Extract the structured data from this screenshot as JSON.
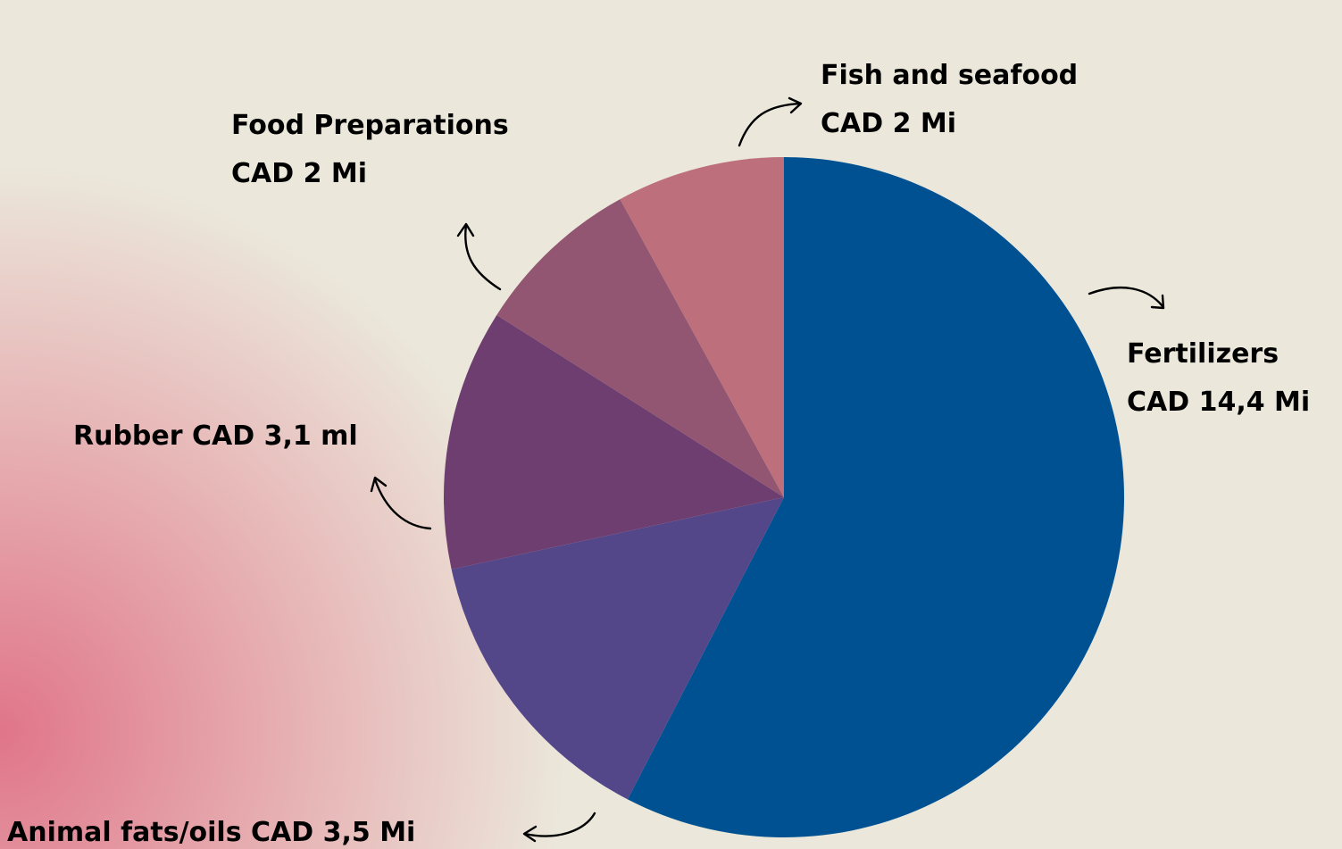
{
  "chart_data": {
    "type": "pie",
    "categories": [
      "Fertilizers",
      "Animal fats/oils",
      "Rubber",
      "Food Preparations",
      "Fish and seafood"
    ],
    "values": [
      14.4,
      3.5,
      3.1,
      2,
      2
    ],
    "value_labels": [
      "CAD 14,4 Mi",
      "CAD 3,5 Mi",
      "CAD 3,1 ml",
      "CAD 2 Mi",
      "CAD 2 Mi"
    ],
    "colors": [
      "#005191",
      "#534689",
      "#6d3e6f",
      "#925672",
      "#bd6f7b"
    ]
  }
}
